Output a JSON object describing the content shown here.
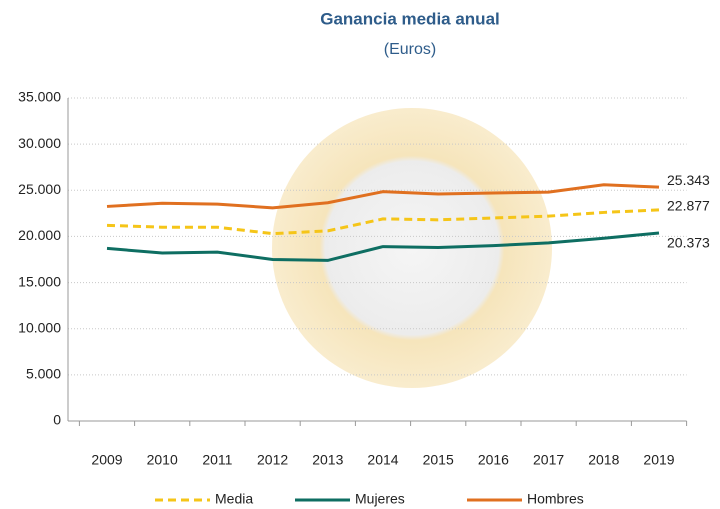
{
  "chart_data": {
    "type": "line",
    "title": "Ganancia media anual",
    "subtitle": "(Euros)",
    "categories": [
      "2009",
      "2010",
      "2011",
      "2012",
      "2013",
      "2014",
      "2015",
      "2016",
      "2017",
      "2018",
      "2019"
    ],
    "series": [
      {
        "name": "Media",
        "color": "#f5c518",
        "dashed": true,
        "values": [
          21200,
          21000,
          21000,
          20300,
          20600,
          21900,
          21800,
          22000,
          22200,
          22600,
          22877
        ],
        "value_labels": [
          null,
          null,
          null,
          null,
          null,
          null,
          null,
          null,
          null,
          null,
          "22.877"
        ]
      },
      {
        "name": "Mujeres",
        "color": "#0e6e62",
        "dashed": false,
        "values": [
          18700,
          18200,
          18300,
          17500,
          17400,
          18900,
          18800,
          19000,
          19300,
          19800,
          20373
        ],
        "value_labels": [
          null,
          null,
          null,
          null,
          null,
          null,
          null,
          null,
          null,
          null,
          "20.373"
        ]
      },
      {
        "name": "Hombres",
        "color": "#e07020",
        "dashed": false,
        "values": [
          23250,
          23600,
          23500,
          23100,
          23650,
          24850,
          24600,
          24700,
          24800,
          25600,
          25343
        ],
        "value_labels": [
          null,
          null,
          null,
          null,
          null,
          null,
          null,
          null,
          null,
          null,
          "25.343"
        ]
      }
    ],
    "ylim": [
      0,
      35000
    ],
    "yticks": [
      0,
      {
        "value": 5000,
        "label": "5.000"
      },
      {
        "value": 10000,
        "label": "10.000"
      },
      {
        "value": 15000,
        "label": "15.000"
      },
      {
        "value": 20000,
        "label": "20.000"
      },
      {
        "value": 25000,
        "label": "25.000"
      },
      {
        "value": 30000,
        "label": "30.000"
      },
      {
        "value": 35000,
        "label": "35.000"
      }
    ],
    "grid": true,
    "legend": "bottom"
  }
}
